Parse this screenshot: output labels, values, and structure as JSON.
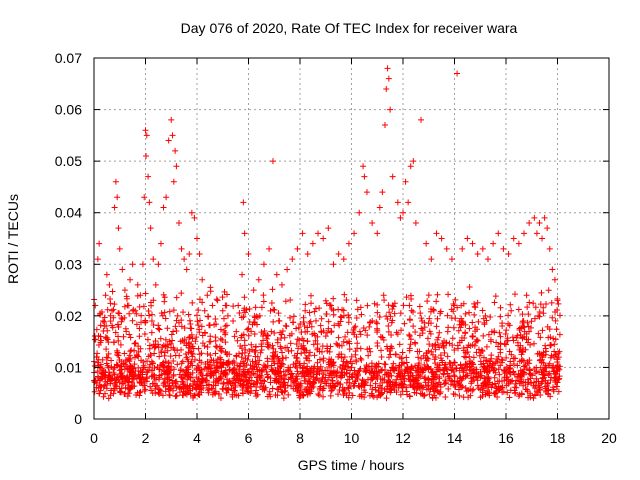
{
  "chart_data": {
    "type": "scatter",
    "title": "Day 076 of 2020, Rate Of TEC Index for receiver wara",
    "xlabel": "GPS time / hours",
    "ylabel": "ROTI / TECUs",
    "xlim": [
      0,
      20
    ],
    "ylim": [
      0,
      0.07
    ],
    "xticks": [
      "0",
      "2",
      "4",
      "6",
      "8",
      "10",
      "12",
      "14",
      "16",
      "18",
      "20"
    ],
    "yticks": [
      "0",
      "0.01",
      "0.02",
      "0.03",
      "0.04",
      "0.05",
      "0.06",
      "0.07"
    ],
    "grid": true,
    "marker": "plus",
    "color": "#ff0000",
    "data_extent_hours": [
      0,
      18.1
    ],
    "series": [
      {
        "name": "ROTI",
        "points": [
          [
            0.05,
            0.022
          ],
          [
            0.1,
            0.012
          ],
          [
            0.15,
            0.031
          ],
          [
            0.2,
            0.034
          ],
          [
            0.25,
            0.016
          ],
          [
            0.3,
            0.009
          ],
          [
            0.35,
            0.019
          ],
          [
            0.45,
            0.024
          ],
          [
            0.5,
            0.028
          ],
          [
            0.6,
            0.026
          ],
          [
            0.7,
            0.021
          ],
          [
            0.8,
            0.041
          ],
          [
            0.85,
            0.046
          ],
          [
            0.9,
            0.043
          ],
          [
            0.95,
            0.037
          ],
          [
            1.0,
            0.033
          ],
          [
            1.1,
            0.029
          ],
          [
            1.2,
            0.025
          ],
          [
            1.3,
            0.022
          ],
          [
            1.4,
            0.027
          ],
          [
            1.5,
            0.03
          ],
          [
            1.6,
            0.021
          ],
          [
            1.7,
            0.026
          ],
          [
            1.8,
            0.024
          ],
          [
            1.9,
            0.03
          ],
          [
            1.95,
            0.043
          ],
          [
            2.0,
            0.056
          ],
          [
            2.02,
            0.051
          ],
          [
            2.05,
            0.055
          ],
          [
            2.1,
            0.047
          ],
          [
            2.15,
            0.042
          ],
          [
            2.2,
            0.037
          ],
          [
            2.3,
            0.031
          ],
          [
            2.4,
            0.026
          ],
          [
            2.5,
            0.03
          ],
          [
            2.6,
            0.034
          ],
          [
            2.7,
            0.041
          ],
          [
            2.8,
            0.043
          ],
          [
            2.9,
            0.054
          ],
          [
            3.0,
            0.058
          ],
          [
            3.05,
            0.055
          ],
          [
            3.1,
            0.046
          ],
          [
            3.15,
            0.052
          ],
          [
            3.2,
            0.049
          ],
          [
            3.3,
            0.038
          ],
          [
            3.4,
            0.033
          ],
          [
            3.5,
            0.031
          ],
          [
            3.6,
            0.029
          ],
          [
            3.7,
            0.032
          ],
          [
            3.8,
            0.04
          ],
          [
            3.9,
            0.039
          ],
          [
            4.0,
            0.035
          ],
          [
            4.1,
            0.032
          ],
          [
            4.2,
            0.027
          ],
          [
            4.4,
            0.024
          ],
          [
            4.6,
            0.022
          ],
          [
            4.8,
            0.023
          ],
          [
            5.0,
            0.021
          ],
          [
            5.2,
            0.02
          ],
          [
            5.4,
            0.019
          ],
          [
            5.6,
            0.022
          ],
          [
            5.75,
            0.028
          ],
          [
            5.8,
            0.042
          ],
          [
            5.85,
            0.036
          ],
          [
            6.0,
            0.032
          ],
          [
            6.2,
            0.025
          ],
          [
            6.4,
            0.027
          ],
          [
            6.6,
            0.03
          ],
          [
            6.8,
            0.033
          ],
          [
            6.95,
            0.05
          ],
          [
            7.1,
            0.028
          ],
          [
            7.3,
            0.026
          ],
          [
            7.5,
            0.029
          ],
          [
            7.7,
            0.031
          ],
          [
            7.9,
            0.033
          ],
          [
            8.1,
            0.036
          ],
          [
            8.3,
            0.032
          ],
          [
            8.5,
            0.034
          ],
          [
            8.7,
            0.036
          ],
          [
            8.9,
            0.035
          ],
          [
            9.1,
            0.037
          ],
          [
            9.3,
            0.03
          ],
          [
            9.5,
            0.032
          ],
          [
            9.7,
            0.031
          ],
          [
            9.9,
            0.034
          ],
          [
            10.1,
            0.036
          ],
          [
            10.3,
            0.04
          ],
          [
            10.45,
            0.049
          ],
          [
            10.5,
            0.047
          ],
          [
            10.6,
            0.044
          ],
          [
            10.8,
            0.038
          ],
          [
            11.0,
            0.036
          ],
          [
            11.1,
            0.041
          ],
          [
            11.2,
            0.044
          ],
          [
            11.3,
            0.057
          ],
          [
            11.35,
            0.064
          ],
          [
            11.4,
            0.068
          ],
          [
            11.45,
            0.066
          ],
          [
            11.5,
            0.06
          ],
          [
            11.6,
            0.047
          ],
          [
            11.8,
            0.042
          ],
          [
            11.9,
            0.039
          ],
          [
            12.0,
            0.04
          ],
          [
            12.1,
            0.046
          ],
          [
            12.2,
            0.042
          ],
          [
            12.3,
            0.049
          ],
          [
            12.4,
            0.05
          ],
          [
            12.5,
            0.038
          ],
          [
            12.7,
            0.058
          ],
          [
            12.9,
            0.034
          ],
          [
            13.1,
            0.031
          ],
          [
            13.3,
            0.036
          ],
          [
            13.5,
            0.035
          ],
          [
            13.7,
            0.033
          ],
          [
            13.9,
            0.031
          ],
          [
            14.1,
            0.067
          ],
          [
            14.3,
            0.033
          ],
          [
            14.5,
            0.035
          ],
          [
            14.7,
            0.034
          ],
          [
            14.9,
            0.032
          ],
          [
            15.1,
            0.033
          ],
          [
            15.3,
            0.031
          ],
          [
            15.5,
            0.034
          ],
          [
            15.7,
            0.036
          ],
          [
            15.9,
            0.033
          ],
          [
            16.1,
            0.032
          ],
          [
            16.3,
            0.035
          ],
          [
            16.5,
            0.034
          ],
          [
            16.7,
            0.036
          ],
          [
            16.9,
            0.038
          ],
          [
            17.1,
            0.039
          ],
          [
            17.2,
            0.036
          ],
          [
            17.3,
            0.038
          ],
          [
            17.4,
            0.035
          ],
          [
            17.5,
            0.039
          ],
          [
            17.6,
            0.037
          ],
          [
            17.7,
            0.033
          ],
          [
            17.8,
            0.029
          ],
          [
            17.9,
            0.027
          ],
          [
            18.0,
            0.023
          ],
          [
            0.4,
            0.018
          ],
          [
            1.25,
            0.017
          ],
          [
            2.25,
            0.019
          ],
          [
            3.25,
            0.02
          ],
          [
            4.3,
            0.021
          ],
          [
            5.1,
            0.018
          ],
          [
            6.1,
            0.017
          ],
          [
            7.2,
            0.019
          ],
          [
            8.2,
            0.021
          ],
          [
            9.2,
            0.022
          ],
          [
            10.2,
            0.023
          ],
          [
            11.25,
            0.024
          ],
          [
            12.25,
            0.022
          ],
          [
            13.2,
            0.021
          ],
          [
            14.2,
            0.019
          ],
          [
            15.2,
            0.02
          ],
          [
            16.2,
            0.021
          ],
          [
            17.25,
            0.02
          ],
          [
            18.05,
            0.012
          ],
          [
            16.8,
            0.024
          ]
        ]
      }
    ]
  }
}
